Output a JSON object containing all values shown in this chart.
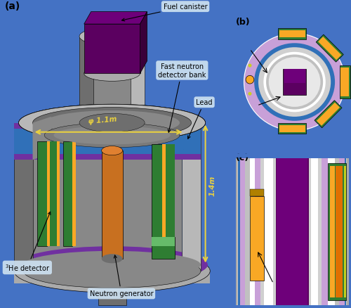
{
  "bg": "#4472c4",
  "c": {
    "gray1": "#888888",
    "gray2": "#6e6e6e",
    "gray3": "#aaaaaa",
    "gray4": "#b8b8b8",
    "gray5": "#d0d0d0",
    "gray6": "#c0c0c0",
    "gray_inner": "#7a7a7a",
    "purple_dark": "#5b0060",
    "purple_mid": "#6e007a",
    "purple_ring": "#7030a0",
    "purple_light": "#c8a0d8",
    "blue_ring": "#3070b8",
    "blue_light": "#6090d0",
    "green": "#2e7d32",
    "green_light": "#66bb6a",
    "yellow": "#f9a825",
    "yellow_dim": "#e8d040",
    "orange": "#c87020",
    "orange2": "#e08030",
    "white": "#ffffff",
    "ann_box": "#cce0f0",
    "black": "#000000"
  },
  "labels": {
    "a": "(a)",
    "b": "(b)",
    "c": "(c)",
    "fuel": "Fuel canister",
    "fast": "Fast neutron\ndetector bank",
    "lead": "Lead",
    "he3": "$^3$He detector",
    "ngen": "Neutron generator",
    "phi": "φ 1.1m",
    "h": "1.4m"
  }
}
